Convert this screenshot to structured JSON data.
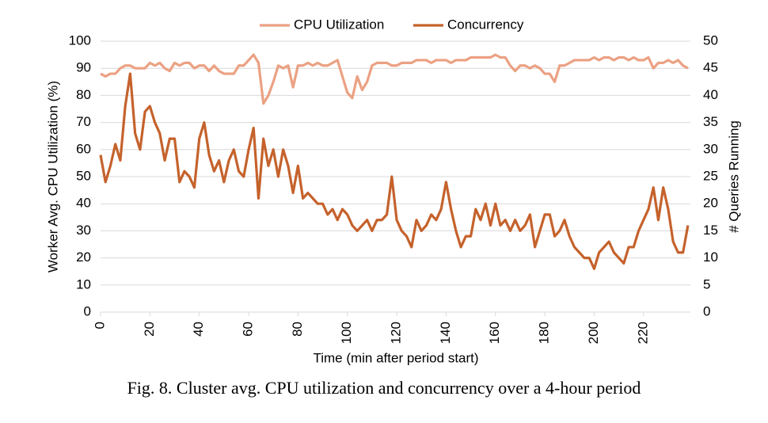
{
  "chart_data": {
    "type": "line",
    "legend": "top",
    "grid": true,
    "xlabel": "Time (min after period start)",
    "ylabel": "Worker Avg. CPU Utilization (%)",
    "y2label": "# Queries Running",
    "caption": "Fig. 8.  Cluster avg. CPU utilization and concurrency over a 4-hour period",
    "xlim": [
      0,
      239
    ],
    "xticks": [
      0,
      20,
      40,
      60,
      80,
      100,
      120,
      140,
      160,
      180,
      200,
      220
    ],
    "ylim": [
      0,
      100
    ],
    "yticks": [
      0,
      10,
      20,
      30,
      40,
      50,
      60,
      70,
      80,
      90,
      100
    ],
    "y2lim": [
      0,
      50
    ],
    "y2ticks": [
      0,
      5,
      10,
      15,
      20,
      25,
      30,
      35,
      40,
      45,
      50
    ],
    "x": [
      0,
      2,
      4,
      6,
      8,
      10,
      12,
      14,
      16,
      18,
      20,
      22,
      24,
      26,
      28,
      30,
      32,
      34,
      36,
      38,
      40,
      42,
      44,
      46,
      48,
      50,
      52,
      54,
      56,
      58,
      60,
      62,
      64,
      66,
      68,
      70,
      72,
      74,
      76,
      78,
      80,
      82,
      84,
      86,
      88,
      90,
      92,
      94,
      96,
      98,
      100,
      102,
      104,
      106,
      108,
      110,
      112,
      114,
      116,
      118,
      120,
      122,
      124,
      126,
      128,
      130,
      132,
      134,
      136,
      138,
      140,
      142,
      144,
      146,
      148,
      150,
      152,
      154,
      156,
      158,
      160,
      162,
      164,
      166,
      168,
      170,
      172,
      174,
      176,
      178,
      180,
      182,
      184,
      186,
      188,
      190,
      192,
      194,
      196,
      198,
      200,
      202,
      204,
      206,
      208,
      210,
      212,
      214,
      216,
      218,
      220,
      222,
      224,
      226,
      228,
      230,
      232,
      234,
      236,
      238
    ],
    "series": [
      {
        "name": "CPU Utilization",
        "color": "#eba183",
        "axis": "y",
        "values": [
          88,
          87,
          88,
          88,
          90,
          91,
          91,
          90,
          90,
          90,
          92,
          91,
          92,
          90,
          89,
          92,
          91,
          92,
          92,
          90,
          91,
          91,
          89,
          91,
          89,
          88,
          88,
          88,
          91,
          91,
          93,
          95,
          92,
          77,
          80,
          85,
          91,
          90,
          91,
          83,
          91,
          91,
          92,
          91,
          92,
          91,
          91,
          92,
          93,
          87,
          81,
          79,
          87,
          82,
          85,
          91,
          92,
          92,
          92,
          91,
          91,
          92,
          92,
          92,
          93,
          93,
          93,
          92,
          93,
          93,
          93,
          92,
          93,
          93,
          93,
          94,
          94,
          94,
          94,
          94,
          95,
          94,
          94,
          91,
          89,
          91,
          91,
          90,
          91,
          90,
          88,
          88,
          85,
          91,
          91,
          92,
          93,
          93,
          93,
          93,
          94,
          93,
          94,
          94,
          93,
          94,
          94,
          93,
          94,
          93,
          93,
          94,
          90,
          92,
          92,
          93,
          92,
          93,
          91,
          90
        ]
      },
      {
        "name": "Concurrency",
        "color": "#c5622c",
        "axis": "y2",
        "values": [
          29,
          24,
          27,
          31,
          28,
          38,
          44,
          33,
          30,
          37,
          38,
          35,
          33,
          28,
          32,
          32,
          24,
          26,
          25,
          23,
          32,
          35,
          29,
          26,
          28,
          24,
          28,
          30,
          26,
          25,
          30,
          34,
          21,
          32,
          27,
          30,
          25,
          30,
          27,
          22,
          27,
          21,
          22,
          21,
          20,
          20,
          18,
          19,
          17,
          19,
          18,
          16,
          15,
          16,
          17,
          15,
          17,
          17,
          18,
          25,
          17,
          15,
          14,
          12,
          17,
          15,
          16,
          18,
          17,
          19,
          24,
          19,
          15,
          12,
          14,
          14,
          19,
          17,
          20,
          16,
          20,
          16,
          17,
          15,
          17,
          15,
          16,
          18,
          12,
          15,
          18,
          18,
          14,
          15,
          17,
          14,
          12,
          11,
          10,
          10,
          8,
          11,
          12,
          13,
          11,
          10,
          9,
          12,
          12,
          15,
          17,
          19,
          23,
          17,
          23,
          19,
          13,
          11,
          11,
          16
        ]
      }
    ]
  }
}
